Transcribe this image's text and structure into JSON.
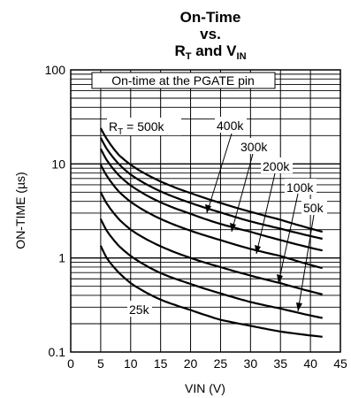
{
  "chart_data": {
    "type": "line",
    "title": {
      "line1": "On-Time",
      "line2": "vs.",
      "line3_parts": [
        "R",
        "T",
        " and V",
        "IN"
      ]
    },
    "xlabel": "VIN (V)",
    "ylabel": "ON-TIME (µs)",
    "xlim": [
      0,
      45
    ],
    "ylim": [
      0.1,
      100
    ],
    "y_scale": "log",
    "grid": true,
    "x_ticks": [
      0,
      5,
      10,
      15,
      20,
      25,
      30,
      35,
      40,
      45
    ],
    "x_tick_labels": [
      "0",
      "5",
      "10",
      "15",
      "20",
      "25",
      "30",
      "35",
      "40",
      "45"
    ],
    "y_ticks": [
      0.1,
      1,
      10,
      100
    ],
    "y_tick_labels": [
      "0.1",
      "1",
      "10",
      "100"
    ],
    "inner_label": "On-time at the PGATE pin",
    "series": [
      {
        "name": "500k",
        "x": [
          5,
          6,
          8,
          10,
          15,
          20,
          25,
          30,
          35,
          42
        ],
        "y": [
          24,
          18.5,
          12.5,
          9.8,
          6.5,
          4.9,
          3.85,
          3.1,
          2.55,
          1.9
        ]
      },
      {
        "name": "400k",
        "x": [
          5,
          6,
          8,
          10,
          15,
          20,
          25,
          30,
          35,
          42
        ],
        "y": [
          19,
          14.5,
          10,
          7.7,
          5.1,
          3.85,
          3.05,
          2.45,
          2.05,
          1.6
        ]
      },
      {
        "name": "300k",
        "x": [
          5,
          6,
          8,
          10,
          15,
          20,
          25,
          30,
          35,
          42
        ],
        "y": [
          14.5,
          11,
          7.6,
          5.9,
          3.9,
          2.95,
          2.3,
          1.9,
          1.55,
          1.2
        ]
      },
      {
        "name": "200k",
        "x": [
          5,
          6,
          8,
          10,
          15,
          20,
          25,
          30,
          35,
          42
        ],
        "y": [
          9.8,
          7.5,
          5.1,
          3.95,
          2.6,
          1.95,
          1.55,
          1.25,
          1.05,
          0.78
        ]
      },
      {
        "name": "100k",
        "x": [
          5,
          6,
          8,
          10,
          15,
          20,
          25,
          30,
          35,
          42
        ],
        "y": [
          5.0,
          3.8,
          2.6,
          2.0,
          1.33,
          1.0,
          0.8,
          0.65,
          0.54,
          0.41
        ]
      },
      {
        "name": "50k",
        "x": [
          5,
          6,
          8,
          10,
          15,
          20,
          25,
          30,
          35,
          42
        ],
        "y": [
          2.6,
          1.95,
          1.35,
          1.05,
          0.69,
          0.53,
          0.42,
          0.34,
          0.29,
          0.23
        ]
      },
      {
        "name": "25k",
        "x": [
          5,
          6,
          8,
          10,
          15,
          20,
          25,
          30,
          35,
          42
        ],
        "y": [
          1.35,
          1.0,
          0.7,
          0.54,
          0.36,
          0.28,
          0.22,
          0.19,
          0.165,
          0.145
        ]
      }
    ],
    "annotations": [
      {
        "text_parts": [
          "R",
          "T",
          " = 500k"
        ]
      },
      {
        "text": "400k",
        "arrow_to": [
          22.6,
          2.78
        ]
      },
      {
        "text": "300k",
        "arrow_to": [
          26.6,
          1.86
        ]
      },
      {
        "text": "200k",
        "arrow_to": [
          30.8,
          1.02
        ]
      },
      {
        "text": "100k",
        "arrow_to": [
          34.6,
          0.52
        ]
      },
      {
        "text": "50k",
        "arrow_to": [
          37.8,
          0.255
        ]
      },
      {
        "text": "25k"
      }
    ]
  }
}
